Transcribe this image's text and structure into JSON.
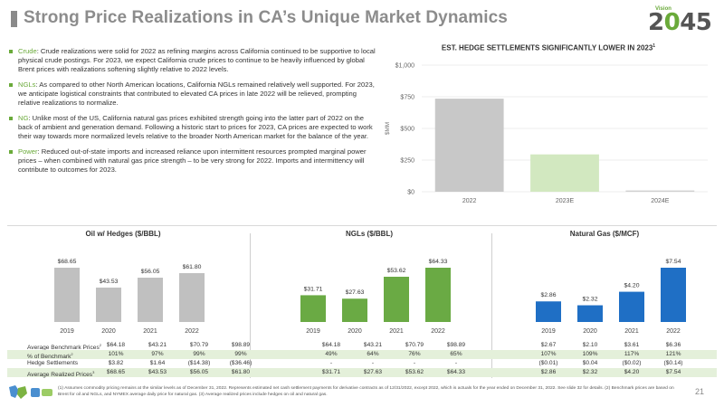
{
  "title": "Strong Price Realizations in CA’s Unique Market Dynamics",
  "logo": {
    "small": "Vision",
    "pre": "2",
    "zero": "0",
    "post": "45"
  },
  "bullets": [
    {
      "label": "Crude",
      "text": ": Crude realizations were solid for 2022 as refining margins across California continued to be supportive to local physical crude postings. For 2023, we expect California crude prices to continue to be heavily influenced by global Brent prices with realizations softening slightly relative to 2022 levels."
    },
    {
      "label": "NGLs",
      "text": ": As compared to other North American locations, California NGLs remained relatively well supported. For 2023, we anticipate logistical constraints that contributed to elevated CA prices in late 2022 will be relieved, prompting relative realizations to normalize."
    },
    {
      "label": "NG",
      "text": ": Unlike most of the US, California natural gas prices exhibited strength going into the latter part of 2022 on the back of ambient and generation demand. Following a historic start to prices for 2023, CA prices are expected to work their way towards more normalized levels relative to the broader North American market for the balance of the year."
    },
    {
      "label": "Power",
      "text": ": Reduced out-of-state imports and increased reliance upon intermittent resources prompted marginal power prices – when combined with natural gas price strength – to be very strong for 2022. Imports and intermittency will contribute to outcomes for 2023."
    }
  ],
  "hedge_chart": {
    "title": "EST. HEDGE SETTLEMENTS SIGNIFICANTLY LOWER IN 2023",
    "title_sup": "1",
    "ylabel": "$MM",
    "yticks": [
      "$0",
      "$250",
      "$500",
      "$750",
      "$1,000"
    ],
    "categories": [
      "2022",
      "2023E",
      "2024E"
    ]
  },
  "chart_data": [
    {
      "type": "bar",
      "title": "EST. HEDGE SETTLEMENTS SIGNIFICANTLY LOWER IN 2023¹",
      "ylabel": "$MM",
      "categories": [
        "2022",
        "2023E",
        "2024E"
      ],
      "values": [
        735,
        295,
        10
      ],
      "colors": [
        "#c8c8c8",
        "#d2e8c0",
        "#d0d0d0"
      ],
      "ylim": [
        0,
        1000
      ],
      "grid": true
    },
    {
      "type": "bar",
      "title": "Oil w/ Hedges ($/BBL)",
      "categories": [
        "2019",
        "2020",
        "2021",
        "2022"
      ],
      "values": [
        68.65,
        43.53,
        56.05,
        61.8
      ],
      "labels": [
        "$68.65",
        "$43.53",
        "$56.05",
        "$61.80"
      ],
      "color": "#c0c0c0"
    },
    {
      "type": "bar",
      "title": "NGLs ($/BBL)",
      "categories": [
        "2019",
        "2020",
        "2021",
        "2022"
      ],
      "values": [
        31.71,
        27.63,
        53.62,
        64.33
      ],
      "labels": [
        "$31.71",
        "$27.63",
        "$53.62",
        "$64.33"
      ],
      "color": "#6aaa44"
    },
    {
      "type": "bar",
      "title": "Natural Gas ($/MCF)",
      "categories": [
        "2019",
        "2020",
        "2021",
        "2022"
      ],
      "values": [
        2.86,
        2.32,
        4.2,
        7.54
      ],
      "labels": [
        "$2.86",
        "$2.32",
        "$4.20",
        "$7.54"
      ],
      "color": "#1f6fc5"
    }
  ],
  "table": {
    "row_labels": [
      "Average Benchmark Prices",
      "% of Benchmark",
      "Hedge Settlements",
      "Average Realized Prices"
    ],
    "row_sups": [
      "2",
      "2",
      "",
      "3"
    ],
    "oil": [
      [
        "$64.18",
        "$43.21",
        "$70.79",
        "$98.89"
      ],
      [
        "101%",
        "97%",
        "99%",
        "99%"
      ],
      [
        "$3.82",
        "$1.64",
        "($14.38)",
        "($36.46)"
      ],
      [
        "$68.65",
        "$43.53",
        "$56.05",
        "$61.80"
      ]
    ],
    "ngl": [
      [
        "$64.18",
        "$43.21",
        "$70.79",
        "$98.89"
      ],
      [
        "49%",
        "64%",
        "76%",
        "65%"
      ],
      [
        "-",
        "-",
        "-",
        "-"
      ],
      [
        "$31.71",
        "$27.63",
        "$53.62",
        "$64.33"
      ]
    ],
    "gas": [
      [
        "$2.67",
        "$2.10",
        "$3.61",
        "$6.36"
      ],
      [
        "107%",
        "109%",
        "117%",
        "121%"
      ],
      [
        "($0.01)",
        "$0.04",
        "($0.02)",
        "($0.14)"
      ],
      [
        "$2.86",
        "$2.32",
        "$4.20",
        "$7.54"
      ]
    ]
  },
  "footnote": "(1) Assumes commodity pricing remains at the similar levels as of December 31, 2022. Represents estimated net cash settlement payments for derivative contracts as of 12/31/2022, except 2022, which is actuals for the year ended on December 31, 2022. See slide 32 for details. (2) Benchmark prices are based on Brent for oil and NGLs, and NYMEX average daily price for natural gas. (3) Average realized prices include hedges on oil and natural gas.",
  "page_number": "21",
  "colors": {
    "green": "#6aaa3a",
    "blue": "#1f6fc5",
    "grey_bar": "#c0c0c0",
    "shade_row": "#e4f0da"
  }
}
